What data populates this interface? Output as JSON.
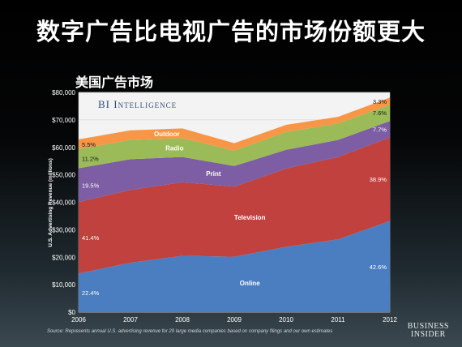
{
  "page": {
    "title": "数字广告比电视广告的市场份额更大",
    "subtitle": "美国广告市场",
    "watermark": "BI Intelligence",
    "source": "Source: Represents annual U.S. advertising revenue for 20 large media companies based on company filings and our own estimates",
    "brand_line1": "Business",
    "brand_line2": "Insider"
  },
  "chart_data": {
    "type": "area",
    "stacked": true,
    "x": [
      "2006",
      "2007",
      "2008",
      "2009",
      "2010",
      "2011",
      "2012"
    ],
    "ylabel": "U.S. Advertising Revenue (millions)",
    "ylim": [
      0,
      80000
    ],
    "yticks": [
      "$0",
      "$10,000",
      "$20,000",
      "$30,000",
      "$40,000",
      "$50,000",
      "$60,000",
      "$70,000",
      "$80,000"
    ],
    "grid": true,
    "series": [
      {
        "name": "Online",
        "color": "#4a7ec0",
        "values": [
          14100,
          18000,
          20500,
          20200,
          23800,
          26500,
          33200
        ],
        "start_pct": "22.4%",
        "end_pct": "42.6%"
      },
      {
        "name": "Television",
        "color": "#c0413d",
        "values": [
          26000,
          26500,
          26800,
          25500,
          28500,
          30000,
          30400
        ],
        "start_pct": "41.4%",
        "end_pct": "38.9%"
      },
      {
        "name": "Print",
        "color": "#7d5da3",
        "values": [
          12300,
          11200,
          9200,
          7500,
          6800,
          6200,
          6000
        ],
        "start_pct": "19.5%",
        "end_pct": "7.7%"
      },
      {
        "name": "Radio",
        "color": "#9bbb59",
        "values": [
          7000,
          7000,
          6900,
          5600,
          6500,
          6000,
          5900
        ],
        "start_pct": "11.2%",
        "end_pct": "7.6%"
      },
      {
        "name": "Outdoor",
        "color": "#f79646",
        "values": [
          3500,
          3500,
          3500,
          2700,
          2600,
          2400,
          2600
        ],
        "start_pct": "5.5%",
        "end_pct": "3.3%"
      }
    ]
  }
}
